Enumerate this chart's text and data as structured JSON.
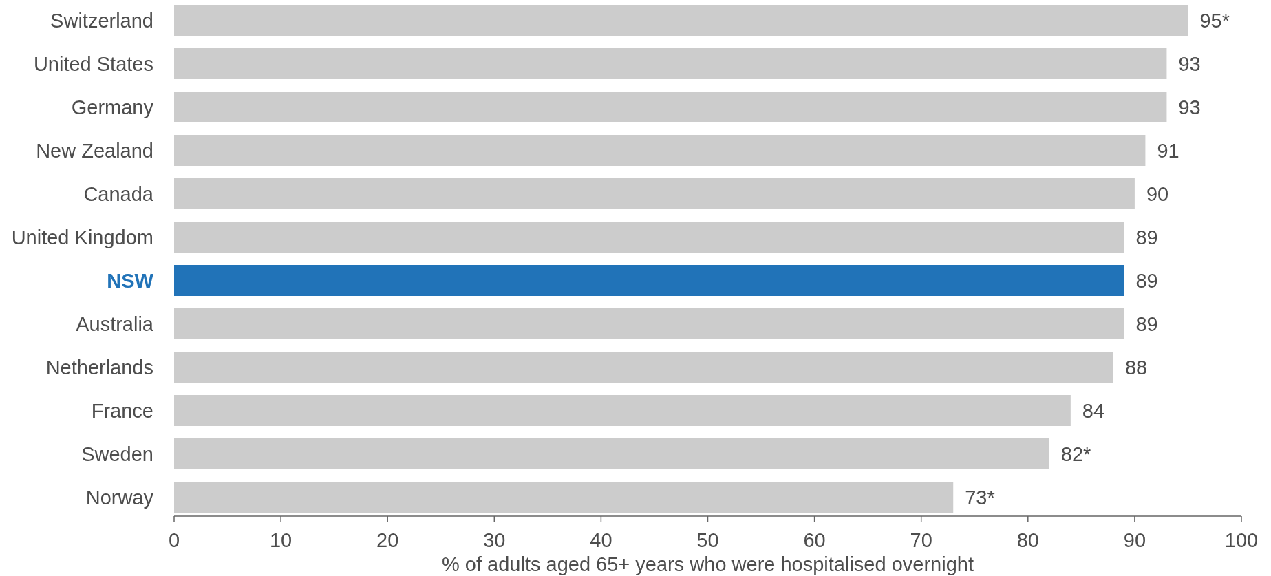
{
  "chart_data": {
    "type": "bar",
    "orientation": "horizontal",
    "xlabel": "% of adults aged 65+ years who were hospitalised overnight",
    "categories": [
      "Switzerland",
      "United States",
      "Germany",
      "New Zealand",
      "Canada",
      "United Kingdom",
      "NSW",
      "Australia",
      "Netherlands",
      "France",
      "Sweden",
      "Norway"
    ],
    "values": [
      95,
      93,
      93,
      91,
      90,
      89,
      89,
      89,
      88,
      84,
      82,
      73
    ],
    "value_labels": [
      "95*",
      "93",
      "93",
      "91",
      "90",
      "89",
      "89",
      "89",
      "88",
      "84",
      "82*",
      "73*"
    ],
    "color": "#cccccc",
    "colors": [
      "#cccccc",
      "#cccccc",
      "#cccccc",
      "#cccccc",
      "#cccccc",
      "#cccccc",
      "#2173b8",
      "#cccccc",
      "#cccccc",
      "#cccccc",
      "#cccccc",
      "#cccccc"
    ],
    "xlim": [
      0,
      100
    ],
    "xticks": [
      0,
      10,
      20,
      30,
      40,
      50,
      60,
      70,
      80,
      90,
      100
    ],
    "grid": false
  }
}
